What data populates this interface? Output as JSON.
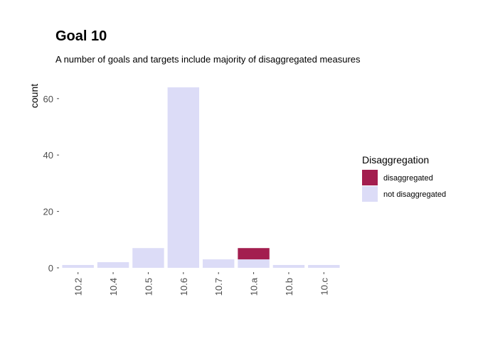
{
  "chart_data": {
    "type": "bar",
    "stacked": true,
    "title": "Goal  10",
    "subtitle": "A number of goals and targets include majority of disaggregated measures",
    "xlabel": "",
    "ylabel": "count",
    "categories": [
      "10.2",
      "10.4",
      "10.5",
      "10.6",
      "10.7",
      "10.a",
      "10.b",
      "10.c"
    ],
    "series": [
      {
        "name": "not disaggregated",
        "color": "#dcdcf7",
        "values": [
          1,
          2,
          7,
          64,
          3,
          3,
          1,
          1
        ]
      },
      {
        "name": "disaggregated",
        "color": "#a31e4f",
        "values": [
          0,
          0,
          0,
          0,
          0,
          4,
          0,
          0
        ]
      }
    ],
    "ylim": [
      0,
      64
    ],
    "yticks": [
      "0",
      "20",
      "40",
      "60"
    ],
    "legend": {
      "title": "Disaggregation",
      "position": "right",
      "entries": [
        "disaggregated",
        "not disaggregated"
      ]
    },
    "grid": false
  }
}
